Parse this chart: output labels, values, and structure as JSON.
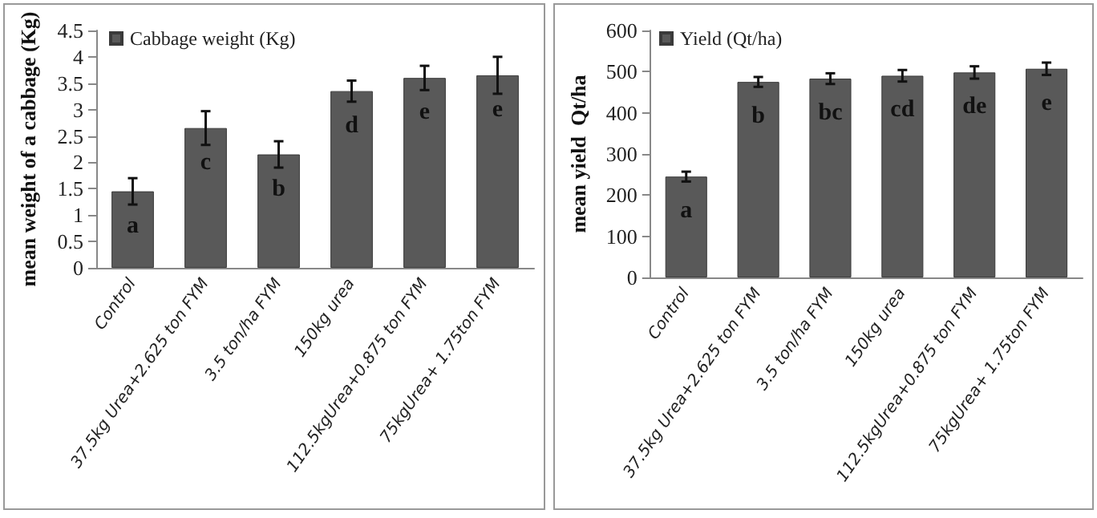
{
  "chart_data": [
    {
      "type": "bar",
      "ylabel": "mean weight of a cabbage (Kg)",
      "categories": [
        "Control",
        "37.5kg Urea+2.625 ton FYM",
        "3.5 ton/ha FYM",
        "150kg urea",
        "112.5kgUrea+0.875 ton FYM",
        "75kgUrea+ 1.75ton FYM"
      ],
      "series": [
        {
          "name": "Cabbage weight (Kg)",
          "color": "#595959",
          "values": [
            1.45,
            2.65,
            2.15,
            3.35,
            3.6,
            3.65
          ],
          "errors": [
            0.25,
            0.32,
            0.25,
            0.2,
            0.23,
            0.35
          ],
          "value_labels": [
            "a",
            "c",
            "b",
            "d",
            "e",
            "e"
          ]
        }
      ],
      "ylim": [
        0,
        4.5
      ],
      "yticks": [
        0,
        0.5,
        1,
        1.5,
        2,
        2.5,
        3,
        3.5,
        4,
        4.5
      ],
      "legend": "top left",
      "grid": false
    },
    {
      "type": "bar",
      "ylabel": "mean yield  Qt/ha",
      "categories": [
        "Control",
        "37.5kg Urea+2.625 ton FYM",
        "3.5 ton/ha FYM",
        "150kg urea",
        "112.5kgUrea+0.875 ton FYM",
        "75kgUrea+ 1.75ton FYM"
      ],
      "series": [
        {
          "name": "Yield (Qt/ha)",
          "color": "#595959",
          "values": [
            245,
            475,
            483,
            490,
            498,
            507
          ],
          "errors": [
            12,
            12,
            13,
            14,
            15,
            15
          ],
          "value_labels": [
            "a",
            "b",
            "bc",
            "cd",
            "de",
            "e"
          ]
        }
      ],
      "ylim": [
        0,
        600
      ],
      "yticks": [
        0,
        100,
        200,
        300,
        400,
        500,
        600
      ],
      "legend": "top left",
      "grid": false
    }
  ]
}
